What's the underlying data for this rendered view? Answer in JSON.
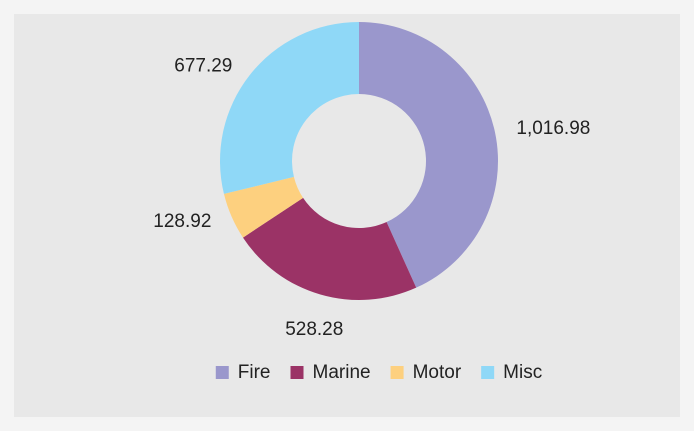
{
  "chart_data": {
    "type": "donut",
    "categories": [
      "Fire",
      "Marine",
      "Motor",
      "Misc"
    ],
    "values": [
      1016.98,
      528.28,
      128.92,
      677.29
    ],
    "value_labels": [
      "1,016.98",
      "528.28",
      "128.92",
      "677.29"
    ],
    "colors": [
      "#9a97cc",
      "#9b3366",
      "#fdd07f",
      "#8fd8f7"
    ],
    "legend": "bottom"
  }
}
